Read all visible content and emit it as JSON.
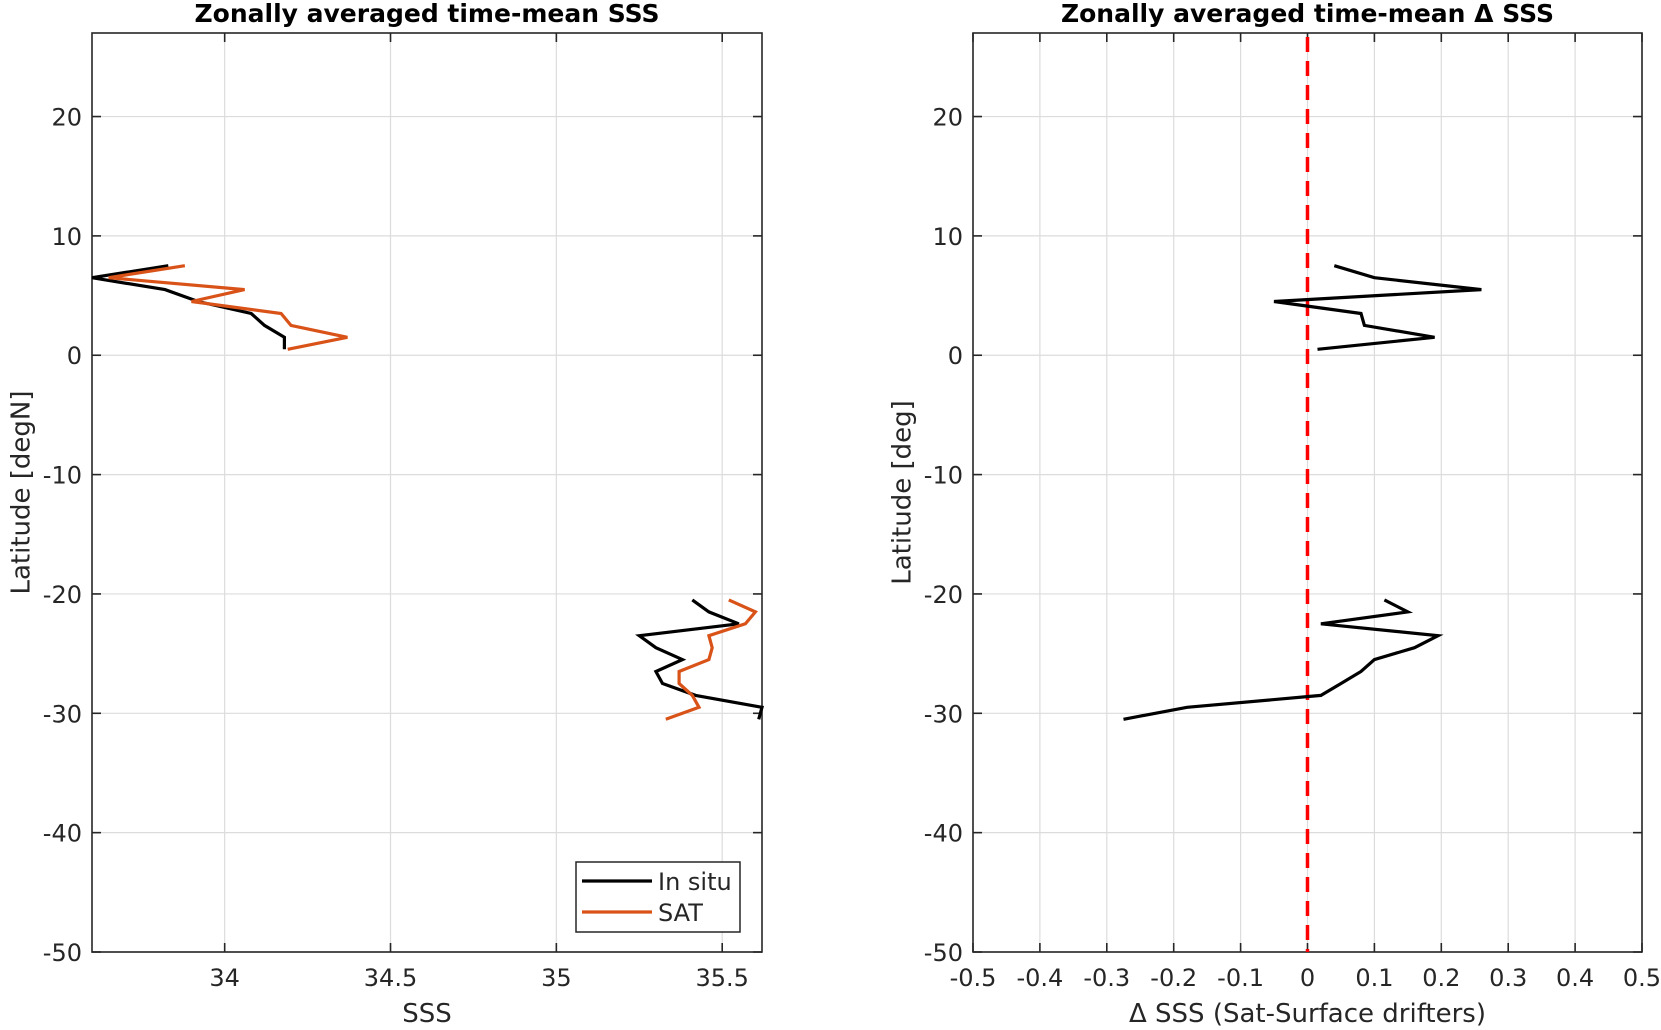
{
  "chart_data": [
    {
      "type": "line",
      "title": "Zonally averaged time-mean SSS",
      "xlabel": "SSS",
      "ylabel": "Latitude [degN]",
      "xlim": [
        33.6,
        35.62
      ],
      "ylim": [
        -50,
        27
      ],
      "xticks": [
        34,
        34.5,
        35,
        35.5
      ],
      "xtick_labels": [
        "34",
        "34.5",
        "35",
        "35.5"
      ],
      "yticks": [
        20,
        10,
        0,
        -10,
        -20,
        -30,
        -40,
        -50
      ],
      "ytick_labels": [
        "20",
        "10",
        "0",
        "-10",
        "-20",
        "-30",
        "-40",
        "-50"
      ],
      "grid": true,
      "legend_position": "bottom-right",
      "series": [
        {
          "name": "In situ",
          "color": "#000000",
          "segments": [
            [
              [
                33.83,
                7.5
              ],
              [
                33.6,
                6.5
              ],
              [
                33.82,
                5.5
              ],
              [
                33.92,
                4.5
              ],
              [
                34.08,
                3.5
              ],
              [
                34.12,
                2.5
              ],
              [
                34.18,
                1.5
              ],
              [
                34.18,
                0.5
              ]
            ],
            [
              [
                35.41,
                -20.5
              ],
              [
                35.46,
                -21.5
              ],
              [
                35.55,
                -22.5
              ],
              [
                35.25,
                -23.5
              ],
              [
                35.3,
                -24.5
              ],
              [
                35.38,
                -25.5
              ],
              [
                35.3,
                -26.5
              ],
              [
                35.32,
                -27.5
              ],
              [
                35.42,
                -28.5
              ],
              [
                35.62,
                -29.5
              ],
              [
                35.61,
                -30.5
              ]
            ]
          ]
        },
        {
          "name": "SAT",
          "color": "#d95319",
          "segments": [
            [
              [
                33.88,
                7.5
              ],
              [
                33.65,
                6.5
              ],
              [
                34.06,
                5.5
              ],
              [
                33.9,
                4.5
              ],
              [
                34.17,
                3.5
              ],
              [
                34.2,
                2.5
              ],
              [
                34.37,
                1.5
              ],
              [
                34.19,
                0.5
              ]
            ],
            [
              [
                35.52,
                -20.5
              ],
              [
                35.6,
                -21.5
              ],
              [
                35.57,
                -22.5
              ],
              [
                35.46,
                -23.5
              ],
              [
                35.47,
                -24.5
              ],
              [
                35.46,
                -25.5
              ],
              [
                35.37,
                -26.5
              ],
              [
                35.37,
                -27.5
              ],
              [
                35.41,
                -28.5
              ],
              [
                35.43,
                -29.5
              ],
              [
                35.33,
                -30.5
              ]
            ]
          ]
        }
      ]
    },
    {
      "type": "line",
      "title": "Zonally averaged time-mean Δ SSS",
      "xlabel": "Δ SSS (Sat-Surface drifters)",
      "ylabel": "Latitude [deg]",
      "xlim": [
        -0.5,
        0.5
      ],
      "ylim": [
        -50,
        27
      ],
      "xticks": [
        -0.5,
        -0.4,
        -0.3,
        -0.2,
        -0.1,
        0,
        0.1,
        0.2,
        0.3,
        0.4,
        0.5
      ],
      "xtick_labels": [
        "-0.5",
        "-0.4",
        "-0.3",
        "-0.2",
        "-0.1",
        "0",
        "0.1",
        "0.2",
        "0.3",
        "0.4",
        "0.5"
      ],
      "yticks": [
        20,
        10,
        0,
        -10,
        -20,
        -30,
        -40,
        -50
      ],
      "ytick_labels": [
        "20",
        "10",
        "0",
        "-10",
        "-20",
        "-30",
        "-40",
        "-50"
      ],
      "grid": true,
      "reference_line": {
        "x": 0,
        "color": "#ff0000",
        "style": "dashed"
      },
      "series": [
        {
          "color": "#000000",
          "segments": [
            [
              [
                0.04,
                7.5
              ],
              [
                0.1,
                6.5
              ],
              [
                0.26,
                5.5
              ],
              [
                -0.05,
                4.5
              ],
              [
                0.08,
                3.5
              ],
              [
                0.085,
                2.5
              ],
              [
                0.19,
                1.5
              ],
              [
                0.015,
                0.5
              ]
            ],
            [
              [
                0.115,
                -20.5
              ],
              [
                0.15,
                -21.5
              ],
              [
                0.02,
                -22.5
              ],
              [
                0.195,
                -23.5
              ],
              [
                0.16,
                -24.5
              ],
              [
                0.1,
                -25.5
              ],
              [
                0.08,
                -26.5
              ],
              [
                0.05,
                -27.5
              ],
              [
                0.02,
                -28.5
              ],
              [
                -0.18,
                -29.5
              ],
              [
                -0.275,
                -30.5
              ]
            ]
          ]
        }
      ]
    }
  ]
}
